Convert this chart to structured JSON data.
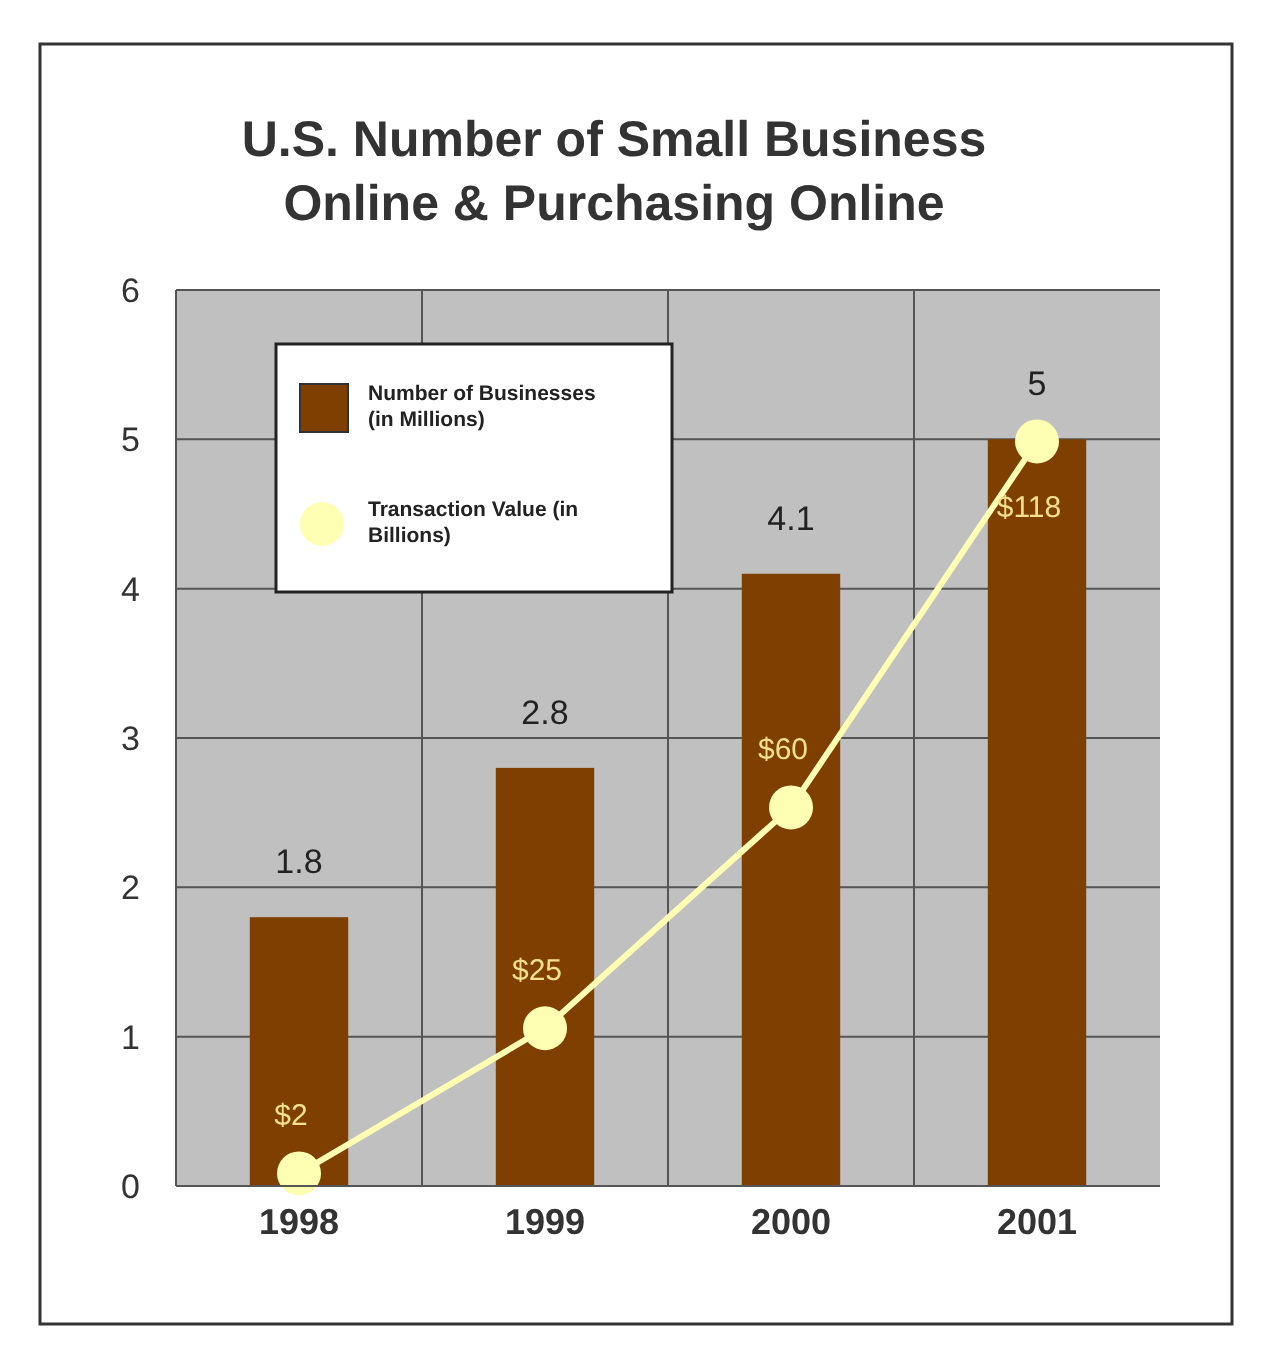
{
  "chart_data": {
    "type": "bar",
    "title": "U.S. Number of Small Business Online & Purchasing Online",
    "categories": [
      "1998",
      "1999",
      "2000",
      "2001"
    ],
    "series": [
      {
        "name": "Number of Businesses (in Millions)",
        "type": "bar",
        "color": "#7f3f00",
        "values": [
          1.8,
          2.8,
          4.1,
          5
        ],
        "value_labels": [
          "1.8",
          "2.8",
          "4.1",
          "5"
        ]
      },
      {
        "name": "Transaction Value (in Billions)",
        "type": "line",
        "axis": "y2",
        "color": "#ffffb4",
        "values": [
          2,
          25,
          60,
          118
        ],
        "value_labels": [
          "$2",
          "$25",
          "$60",
          "$118"
        ],
        "marker": "circle"
      }
    ],
    "ylim": [
      0,
      6
    ],
    "yticks": [
      0,
      1,
      2,
      3,
      4,
      5,
      6
    ],
    "y2lim": [
      0,
      142
    ],
    "grid": true,
    "legend": "top left"
  }
}
